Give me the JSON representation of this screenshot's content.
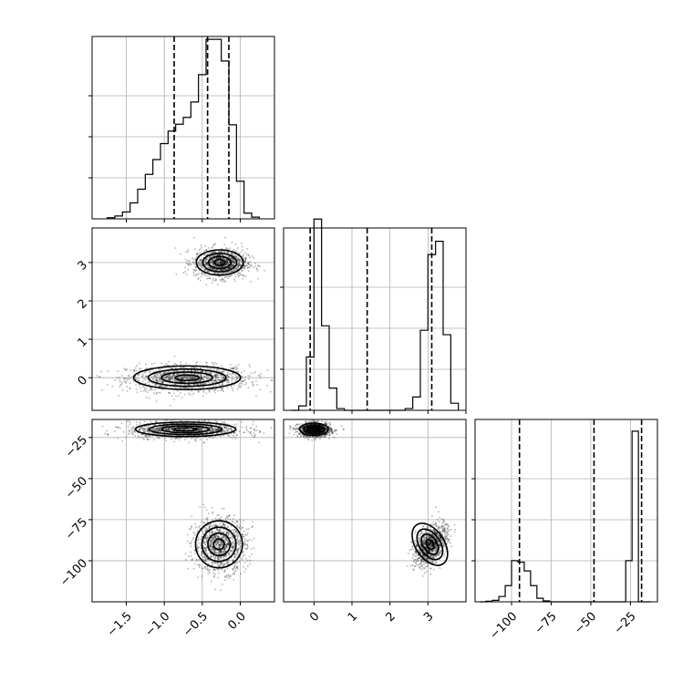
{
  "chart_data": {
    "type": "corner",
    "grid": true,
    "panels": [
      {
        "id": "hist-p0",
        "type": "histogram",
        "row": 0,
        "col": 0,
        "xlim": [
          -1.95,
          0.45
        ],
        "bin_edges": [
          -1.75,
          -1.65,
          -1.55,
          -1.45,
          -1.35,
          -1.25,
          -1.15,
          -1.05,
          -0.95,
          -0.85,
          -0.75,
          -0.65,
          -0.55,
          -0.45,
          -0.35,
          -0.25,
          -0.15,
          -0.05,
          0.05,
          0.15,
          0.25
        ],
        "counts": [
          2,
          5,
          12,
          28,
          52,
          78,
          104,
          132,
          154,
          166,
          178,
          205,
          253,
          315,
          315,
          277,
          165,
          66,
          10,
          3
        ],
        "ylim": [
          0,
          320
        ],
        "quantiles": [
          -0.87,
          -0.43,
          -0.15
        ]
      },
      {
        "id": "scatter-p0-p1",
        "type": "density",
        "row": 1,
        "col": 0,
        "xlim": [
          -1.95,
          0.45
        ],
        "ylim": [
          -0.85,
          3.9
        ],
        "xticks": [],
        "yticks": [
          0,
          1,
          2,
          3
        ],
        "ytick_labels": [
          "0",
          "1",
          "2",
          "3"
        ],
        "clusters": [
          {
            "cx": -0.7,
            "cy": 0.0,
            "sx": 0.32,
            "sy": 0.14,
            "rot": 0,
            "n": 1200
          },
          {
            "cx": -0.27,
            "cy": 3.0,
            "sx": 0.14,
            "sy": 0.15,
            "rot": 0,
            "n": 1100
          }
        ]
      },
      {
        "id": "hist-p1",
        "type": "histogram",
        "row": 1,
        "col": 1,
        "xlim": [
          -0.8,
          4.0
        ],
        "bin_edges": [
          -0.6,
          -0.4,
          -0.2,
          0.0,
          0.2,
          0.4,
          0.6,
          0.8,
          1.0,
          1.2,
          1.4,
          1.6,
          1.8,
          2.0,
          2.2,
          2.4,
          2.6,
          2.8,
          3.0,
          3.2,
          3.4,
          3.6,
          3.8
        ],
        "counts": [
          0,
          5,
          60,
          215,
          95,
          25,
          2,
          0,
          0,
          0,
          0,
          0,
          0,
          0,
          0,
          2,
          15,
          90,
          175,
          190,
          85,
          8
        ],
        "ylim": [
          0,
          205
        ],
        "quantiles": [
          -0.1,
          1.4,
          3.1
        ]
      },
      {
        "id": "scatter-p0-p2",
        "type": "density",
        "row": 2,
        "col": 0,
        "xlim": [
          -1.95,
          0.45
        ],
        "ylim": [
          -125,
          -14
        ],
        "xticks": [
          -1.5,
          -1.0,
          -0.5,
          0.0
        ],
        "xtick_labels": [
          "−1.5",
          "−1.0",
          "−0.5",
          "0.0"
        ],
        "yticks": [
          -25,
          -50,
          -75,
          -100
        ],
        "ytick_labels": [
          "−25",
          "−50",
          "−75",
          "−100"
        ],
        "clusters": [
          {
            "cx": -0.72,
            "cy": -20,
            "sx": 0.3,
            "sy": 2.0,
            "rot": 0,
            "n": 1100
          },
          {
            "cx": -0.28,
            "cy": -90,
            "sx": 0.14,
            "sy": 6.5,
            "rot": 0,
            "n": 1100
          }
        ]
      },
      {
        "id": "scatter-p1-p2",
        "type": "density",
        "row": 2,
        "col": 1,
        "xlim": [
          -0.8,
          4.0
        ],
        "ylim": [
          -125,
          -14
        ],
        "xticks": [
          0,
          1,
          2,
          3
        ],
        "xtick_labels": [
          "0",
          "1",
          "2",
          "3"
        ],
        "clusters": [
          {
            "cx": 0.0,
            "cy": -20,
            "sx": 0.17,
            "sy": 1.7,
            "rot": 0,
            "n": 1100
          },
          {
            "cx": 3.05,
            "cy": -90,
            "sx": 0.17,
            "sy": 6.5,
            "rot": 0.8,
            "n": 1100
          }
        ]
      },
      {
        "id": "hist-p2",
        "type": "histogram",
        "row": 2,
        "col": 2,
        "xlim": [
          -123,
          -8
        ],
        "bin_edges": [
          -120,
          -116,
          -112,
          -108,
          -104,
          -100,
          -96,
          -92,
          -88,
          -84,
          -80,
          -76,
          -72,
          -68,
          -64,
          -60,
          -56,
          -52,
          -48,
          -44,
          -40,
          -36,
          -32,
          -28,
          -24,
          -20,
          -16,
          -12
        ],
        "counts": [
          0,
          2,
          5,
          18,
          55,
          140,
          135,
          105,
          55,
          12,
          3,
          0,
          0,
          0,
          0,
          0,
          0,
          0,
          0,
          0,
          0,
          0,
          0,
          140,
          580,
          0,
          0
        ],
        "ylim": [
          0,
          620
        ],
        "quantiles": [
          -95,
          -48,
          -18
        ],
        "xticks": [
          -100,
          -75,
          -50,
          -25
        ],
        "xtick_labels": [
          "−100",
          "−75",
          "−50",
          "−25"
        ]
      }
    ]
  }
}
